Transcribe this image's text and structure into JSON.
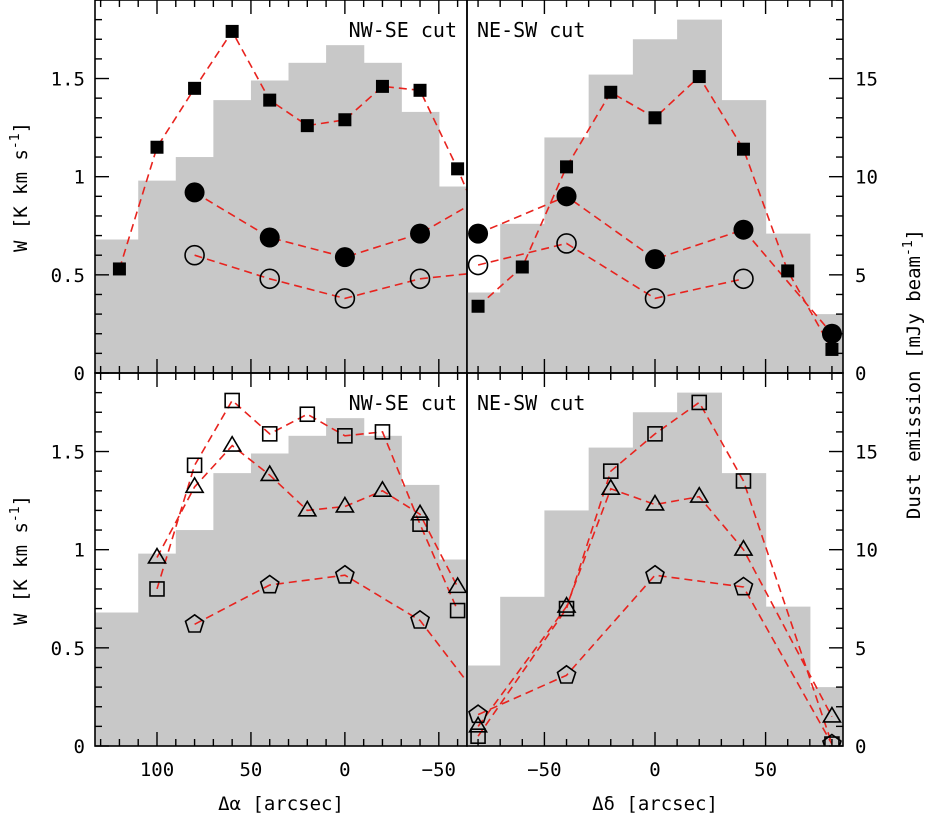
{
  "figure": {
    "left_ylabel": "W [K km s",
    "left_ylabel_sup": "-1",
    "left_ylabel_end": "]",
    "right_ylabel": "Dust emission [mJy beam",
    "right_ylabel_sup": "-1",
    "right_ylabel_end": "]",
    "xlabel_left": "Δα [arcsec]",
    "xlabel_right": "Δδ [arcsec]",
    "yticks_left": [
      "0",
      "0.5",
      "1",
      "1.5"
    ],
    "yticks_right": [
      "0",
      "5",
      "10",
      "15"
    ],
    "xticks_left": [
      "100",
      "50",
      "0",
      "−50"
    ],
    "xticks_right": [
      "−50",
      "0",
      "50"
    ]
  },
  "chart_data": [
    {
      "type": "line",
      "title": "NW-SE cut",
      "xlim": [
        133,
        -65
      ],
      "ylim": [
        0,
        1.9
      ],
      "y2lim": [
        0,
        19
      ],
      "dust_histogram": {
        "edges": [
          133,
          110,
          90,
          70,
          50,
          30,
          10,
          -10,
          -30,
          -50,
          -65
        ],
        "heights": [
          6.8,
          9.8,
          11.0,
          13.9,
          14.9,
          15.8,
          16.7,
          15.8,
          13.3,
          9.5
        ]
      },
      "series": [
        {
          "marker": "filled-square",
          "x": [
            120,
            100,
            80,
            60,
            40,
            20,
            0,
            -20,
            -40,
            -60,
            -80
          ],
          "y": [
            0.53,
            1.15,
            1.45,
            1.74,
            1.39,
            1.26,
            1.29,
            1.46,
            1.44,
            1.04,
            0.59
          ]
        },
        {
          "marker": "filled-circle",
          "x": [
            80,
            40,
            0,
            -40,
            -80
          ],
          "y": [
            0.92,
            0.69,
            0.59,
            0.71,
            0.93
          ]
        },
        {
          "marker": "open-circle",
          "x": [
            80,
            40,
            0,
            -40,
            -80
          ],
          "y": [
            0.6,
            0.48,
            0.38,
            0.48,
            0.52
          ]
        }
      ]
    },
    {
      "type": "line",
      "title": "NE-SW cut",
      "xlim": [
        -85,
        85
      ],
      "ylim": [
        0,
        1.9
      ],
      "y2lim": [
        0,
        19
      ],
      "dust_histogram": {
        "edges": [
          -85,
          -70,
          -50,
          -30,
          -10,
          10,
          30,
          50,
          70,
          85
        ],
        "heights": [
          4.1,
          7.6,
          12.0,
          15.2,
          17.0,
          18.0,
          13.9,
          7.1,
          3.0
        ]
      },
      "series": [
        {
          "marker": "filled-square",
          "x": [
            -80,
            -60,
            -40,
            -20,
            0,
            20,
            40,
            60,
            80
          ],
          "y": [
            0.34,
            0.54,
            1.05,
            1.43,
            1.3,
            1.51,
            1.14,
            0.52,
            0.12
          ]
        },
        {
          "marker": "filled-circle",
          "x": [
            -80,
            -40,
            0,
            40,
            80
          ],
          "y": [
            0.71,
            0.9,
            0.58,
            0.73,
            0.2
          ]
        },
        {
          "marker": "open-circle",
          "x": [
            -80,
            -40,
            0,
            40
          ],
          "y": [
            0.55,
            0.66,
            0.38,
            0.48
          ]
        }
      ]
    },
    {
      "type": "line",
      "title": "NW-SE cut",
      "xlim": [
        133,
        -65
      ],
      "ylim": [
        0,
        1.9
      ],
      "y2lim": [
        0,
        19
      ],
      "dust_histogram": {
        "edges": [
          133,
          110,
          90,
          70,
          50,
          30,
          10,
          -10,
          -30,
          -50,
          -65
        ],
        "heights": [
          6.8,
          9.8,
          11.0,
          13.9,
          14.9,
          15.8,
          16.7,
          15.8,
          13.3,
          9.5
        ]
      },
      "series": [
        {
          "marker": "open-square",
          "x": [
            100,
            80,
            60,
            40,
            20,
            0,
            -20,
            -40,
            -60
          ],
          "y": [
            0.8,
            1.43,
            1.76,
            1.59,
            1.69,
            1.58,
            1.6,
            1.13,
            0.69
          ]
        },
        {
          "marker": "open-triangle",
          "x": [
            100,
            80,
            60,
            40,
            20,
            0,
            -20,
            -40,
            -60
          ],
          "y": [
            0.96,
            1.32,
            1.53,
            1.38,
            1.2,
            1.22,
            1.3,
            1.18,
            0.81
          ]
        },
        {
          "marker": "open-pentagon",
          "x": [
            80,
            40,
            0,
            -40,
            -80
          ],
          "y": [
            0.62,
            0.82,
            0.87,
            0.64,
            0.14
          ]
        }
      ]
    },
    {
      "type": "line",
      "title": "NE-SW cut",
      "xlim": [
        -85,
        85
      ],
      "ylim": [
        0,
        1.9
      ],
      "y2lim": [
        0,
        19
      ],
      "dust_histogram": {
        "edges": [
          -85,
          -70,
          -50,
          -30,
          -10,
          10,
          30,
          50,
          70,
          85
        ],
        "heights": [
          4.1,
          7.6,
          12.0,
          15.2,
          17.0,
          18.0,
          13.9,
          7.1,
          3.0
        ]
      },
      "series": [
        {
          "marker": "open-square",
          "x": [
            -80,
            -40,
            -20,
            0,
            20,
            40,
            80
          ],
          "y": [
            0.05,
            0.7,
            1.4,
            1.59,
            1.75,
            1.35,
            0.01
          ]
        },
        {
          "marker": "open-triangle",
          "x": [
            -80,
            -40,
            -20,
            0,
            20,
            40,
            80
          ],
          "y": [
            0.1,
            0.71,
            1.31,
            1.23,
            1.27,
            1.0,
            0.15
          ]
        },
        {
          "marker": "open-pentagon",
          "x": [
            -80,
            -40,
            0,
            40,
            80
          ],
          "y": [
            0.16,
            0.36,
            0.87,
            0.81,
            0.01
          ]
        }
      ]
    }
  ]
}
